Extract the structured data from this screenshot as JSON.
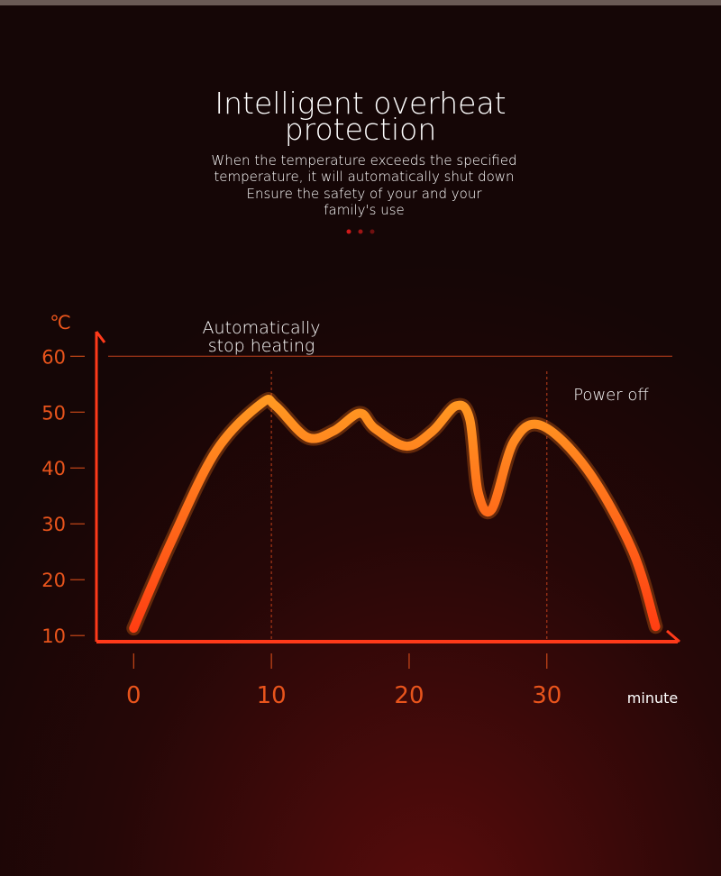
{
  "chart_data": {
    "type": "line",
    "title": [
      "Intelligent overheat",
      "protection"
    ],
    "subtitle": [
      "When the temperature exceeds the specified",
      "temperature, it will automatically shut down",
      "Ensure the safety of your and your",
      "family's use"
    ],
    "y_unit": "℃",
    "x_label": "minute",
    "x": [
      0,
      2.75,
      6.0,
      9.3,
      10.3,
      12.6,
      14.5,
      16.4,
      17.5,
      19.8,
      21.7,
      23.4,
      24.4,
      25.0,
      26.0,
      27.6,
      29.6,
      32.9,
      36.2,
      37.9
    ],
    "series": [
      {
        "color": "#ff7a18",
        "values": [
          11.3,
          26.9,
          43.1,
          51.6,
          51.1,
          45.5,
          46.6,
          49.8,
          47.1,
          43.9,
          46.6,
          51.1,
          48.7,
          35.8,
          32.6,
          44.7,
          47.6,
          39.8,
          25.3,
          11.6
        ]
      }
    ],
    "xlim": [
      -2.7,
      39.5
    ],
    "xticks": [
      0,
      10,
      20,
      30
    ],
    "ylim": [
      8.9,
      64.4
    ],
    "yticks": [
      10,
      20,
      30,
      40,
      50,
      60
    ],
    "hline": 60,
    "vlines": [
      10,
      30
    ],
    "annotations": [
      {
        "text": [
          "Automatically",
          "stop heating"
        ]
      },
      {
        "text": "Power off"
      }
    ]
  }
}
